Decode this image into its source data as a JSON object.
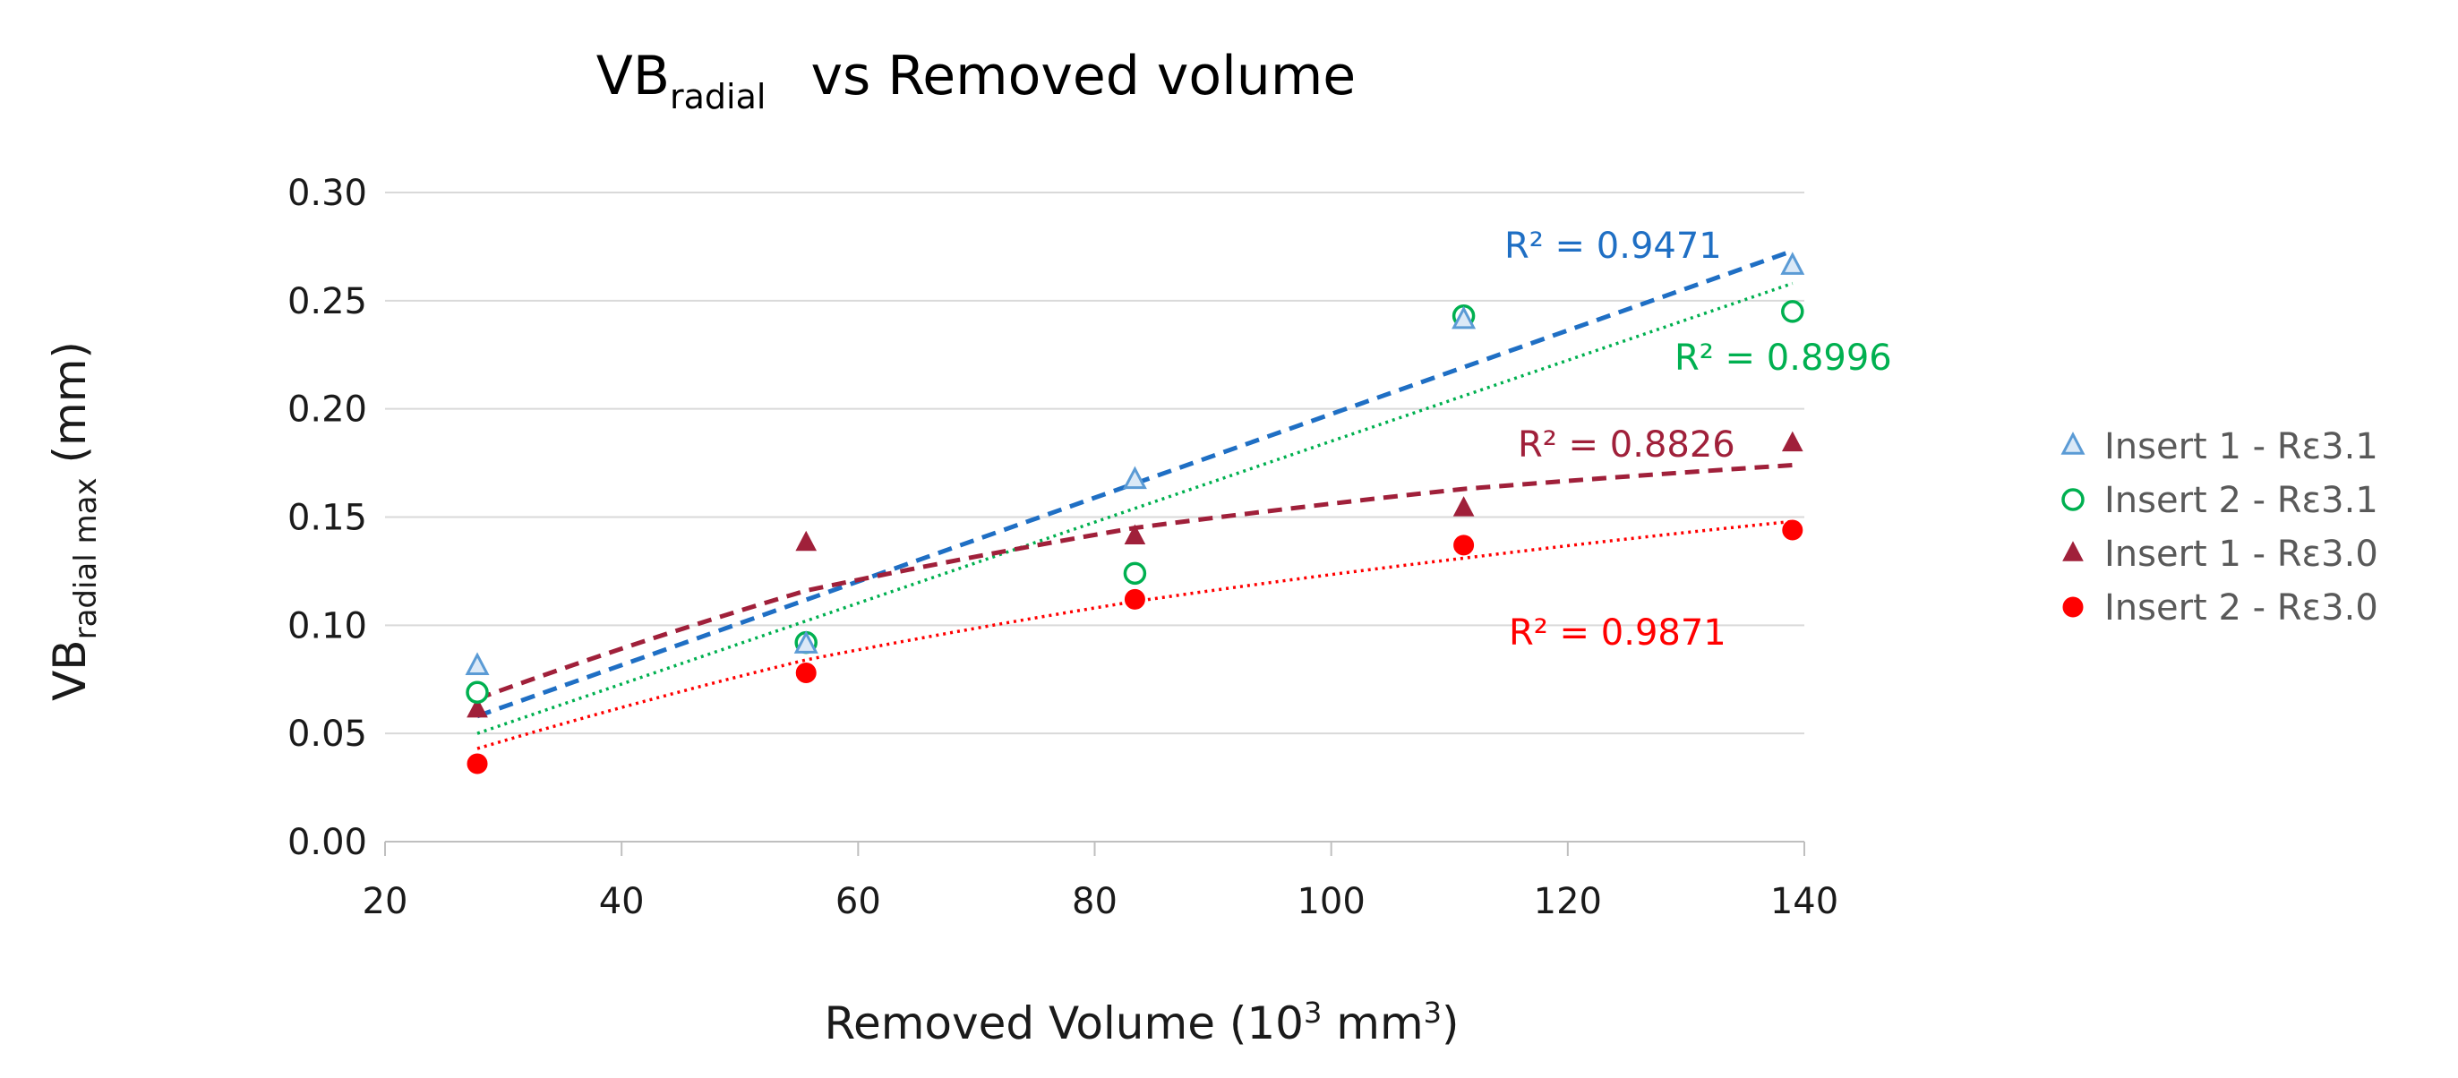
{
  "chart_data": {
    "type": "scatter",
    "title_main": "VB",
    "title_sub": "radial",
    "title_rest": "vs   Removed volume",
    "xlabel_main": "Removed Volume (10",
    "xlabel_sup1": "3",
    "xlabel_mid": " mm",
    "xlabel_sup2": "3",
    "xlabel_end": ")",
    "ylabel_main": "VB",
    "ylabel_sub": "radial max",
    "ylabel_end": " (mm)",
    "xlim": [
      20,
      140
    ],
    "ylim": [
      0,
      0.3
    ],
    "xticks": [
      "20",
      "40",
      "60",
      "80",
      "100",
      "120",
      "140"
    ],
    "xtick_values": [
      20,
      40,
      60,
      80,
      100,
      120,
      140
    ],
    "yticks": [
      "0.00",
      "0.05",
      "0.10",
      "0.15",
      "0.20",
      "0.25",
      "0.30"
    ],
    "ytick_values": [
      0,
      0.05,
      0.1,
      0.15,
      0.2,
      0.25,
      0.3
    ],
    "grid": "horizontal",
    "legend_position": "right",
    "series": [
      {
        "name": "Insert 1 - Rε3.1",
        "marker": "triangle-open",
        "color": "#5b9bd5",
        "x": [
          27.8,
          55.6,
          83.4,
          111.2,
          139.0
        ],
        "y": [
          0.081,
          0.091,
          0.167,
          0.241,
          0.266
        ],
        "trend": {
          "style": "dashed",
          "color": "#1f6fc4",
          "r2_label": "R² = 0.9471",
          "fit": "linear",
          "y_start": 0.058,
          "y_end": 0.273
        }
      },
      {
        "name": "Insert 2 - Rε3.1",
        "marker": "circle-open",
        "color": "#00b050",
        "x": [
          27.8,
          55.6,
          83.4,
          111.2,
          139.0
        ],
        "y": [
          0.069,
          0.092,
          0.124,
          0.243,
          0.245
        ],
        "trend": {
          "style": "dotted",
          "color": "#00b050",
          "r2_label": "R² = 0.8996",
          "fit": "linear",
          "y_start": 0.05,
          "y_end": 0.258
        }
      },
      {
        "name": "Insert 1 - Rε3.0",
        "marker": "triangle-filled",
        "color": "#a0203a",
        "x": [
          27.8,
          55.6,
          83.4,
          111.2,
          139.0
        ],
        "y": [
          0.061,
          0.138,
          0.141,
          0.154,
          0.184
        ],
        "trend": {
          "style": "dashed",
          "color": "#a0203a",
          "r2_label": "R² = 0.8826",
          "fit": "curve",
          "y_points": [
            0.066,
            0.116,
            0.145,
            0.163,
            0.174
          ]
        }
      },
      {
        "name": "Insert 2 - Rε3.0",
        "marker": "circle-filled",
        "color": "#ff0000",
        "x": [
          27.8,
          55.6,
          83.4,
          111.2,
          139.0
        ],
        "y": [
          0.036,
          0.078,
          0.112,
          0.137,
          0.144
        ],
        "trend": {
          "style": "dotted",
          "color": "#ff0000",
          "r2_label": "R² = 0.9871",
          "fit": "curve",
          "y_points": [
            0.043,
            0.084,
            0.111,
            0.131,
            0.148
          ]
        }
      }
    ]
  }
}
